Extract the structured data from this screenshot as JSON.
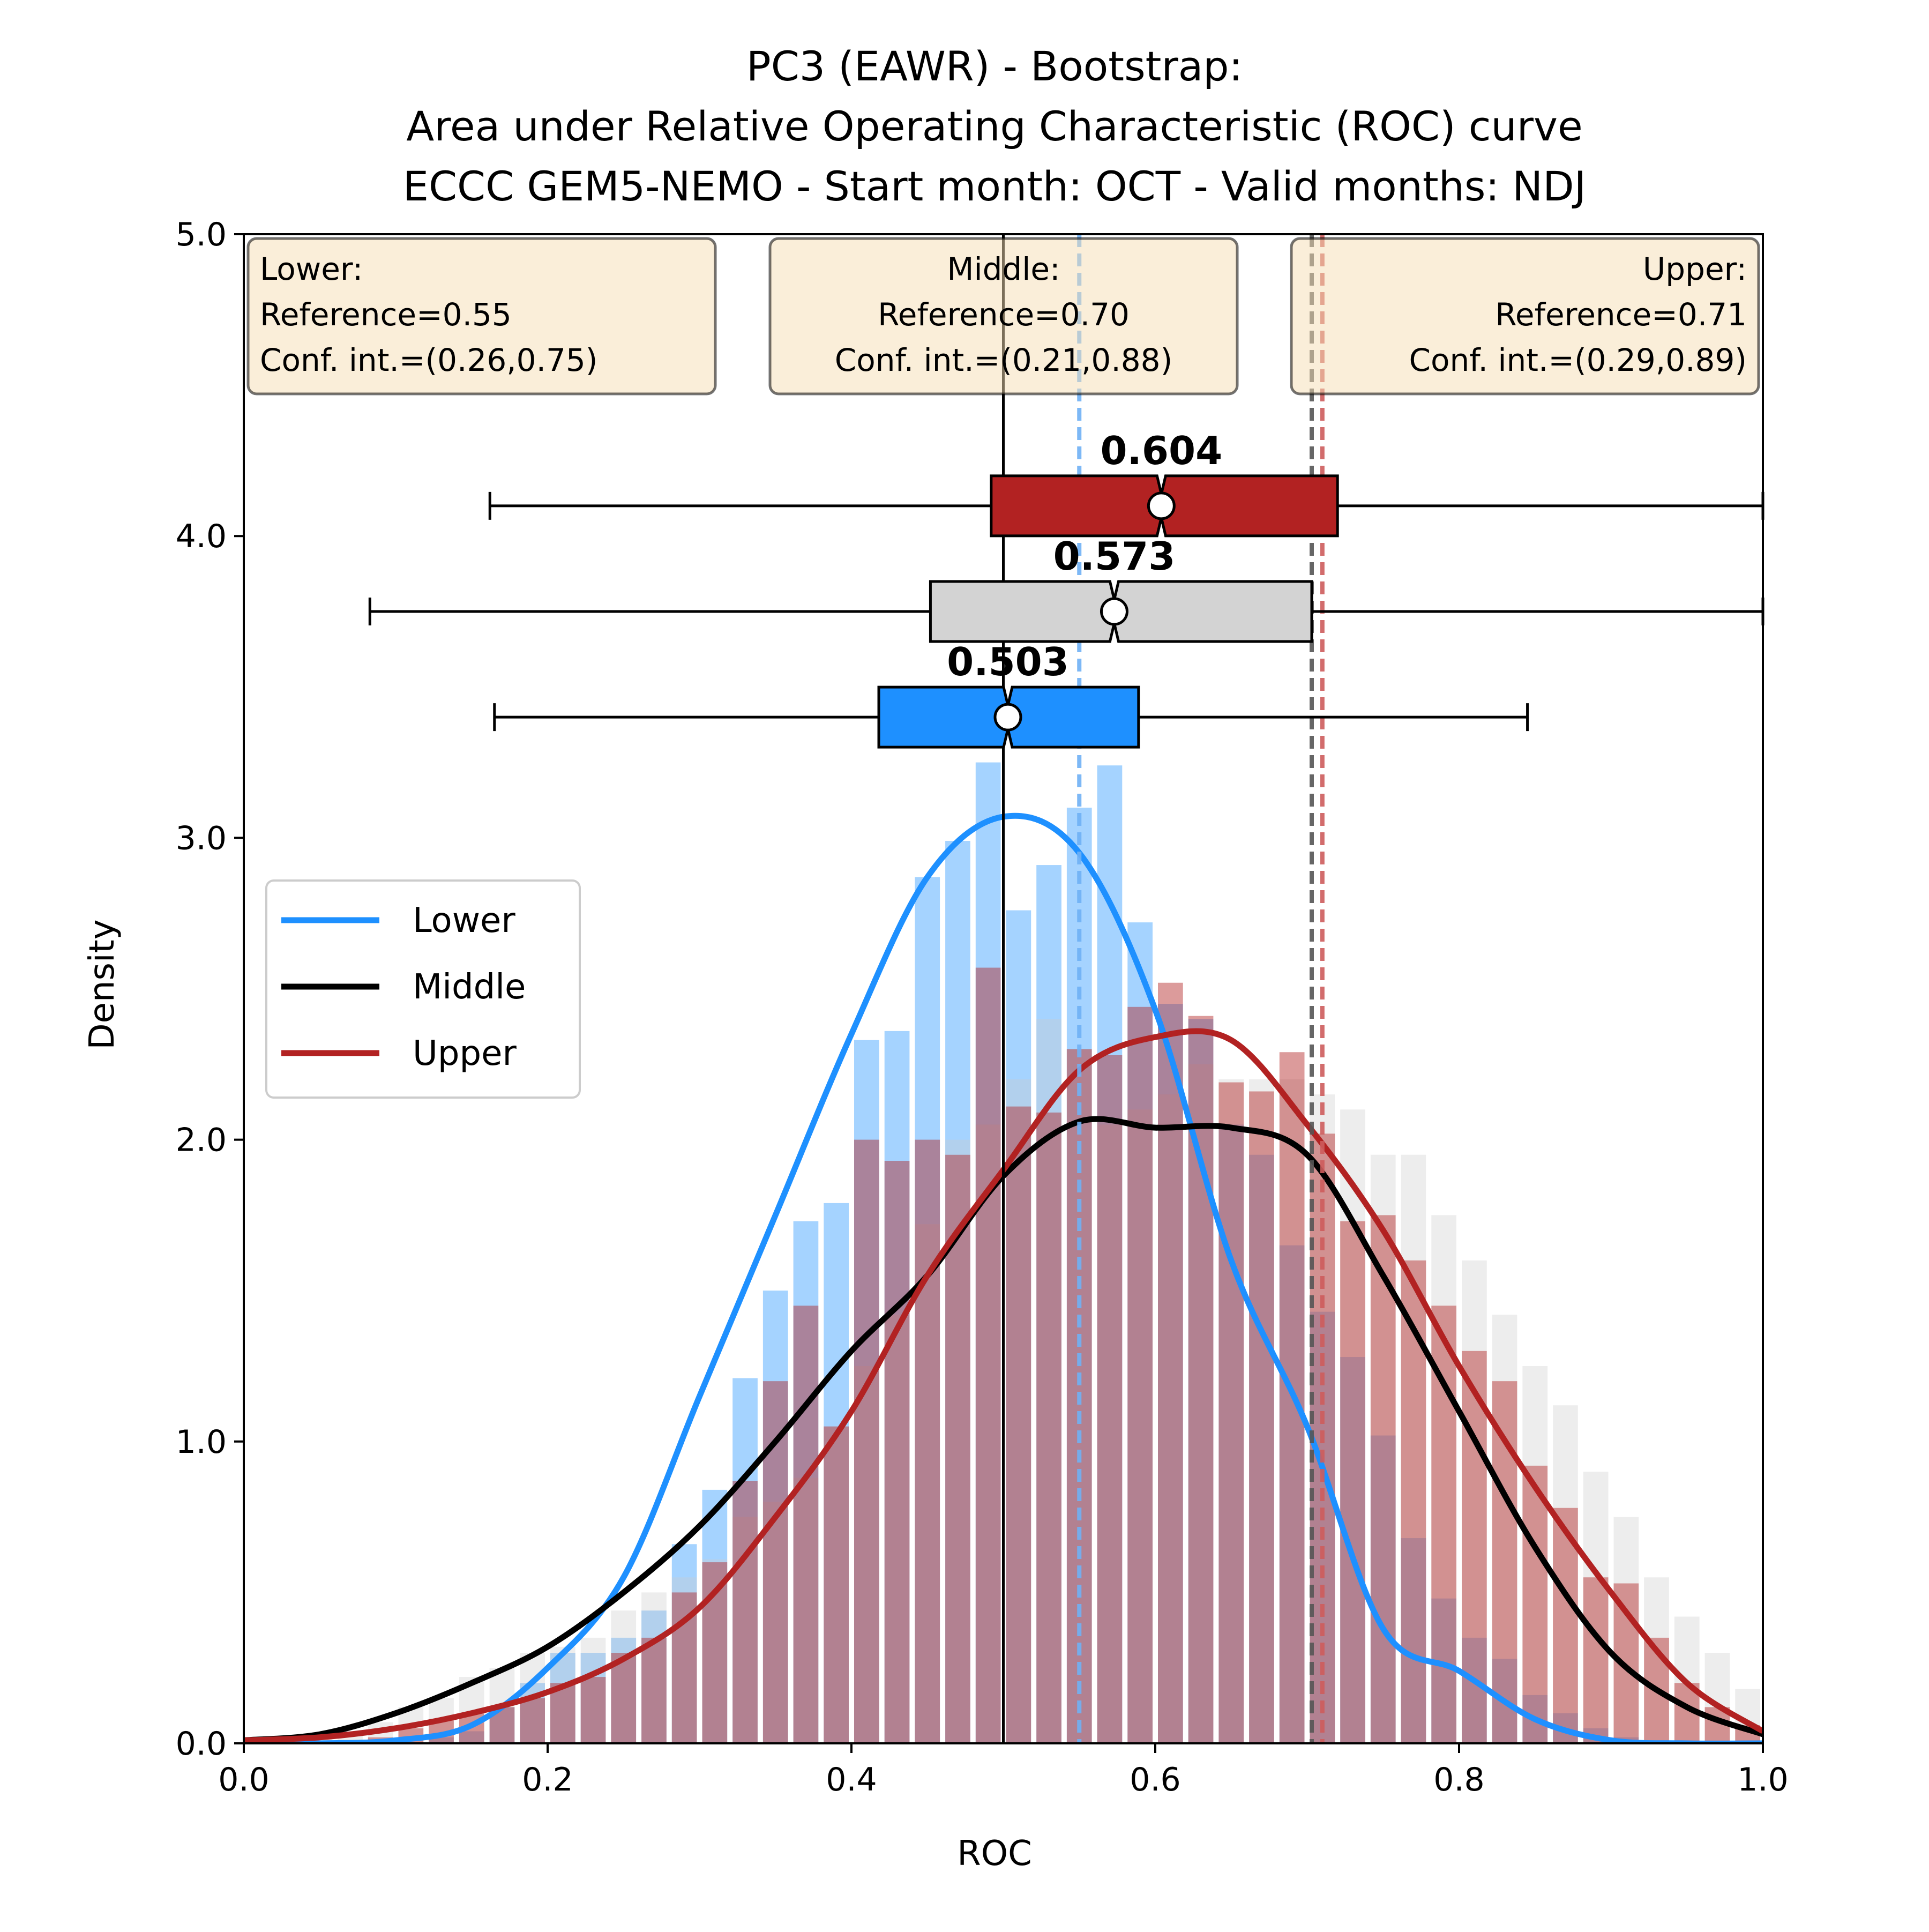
{
  "chart_data": {
    "type": "histogram+kde+boxplot",
    "title_lines": [
      "PC3 (EAWR) - Bootstrap:",
      "Area under Relative Operating Characteristic (ROC) curve",
      "ECCC GEM5-NEMO - Start month: OCT - Valid months: NDJ"
    ],
    "xlabel": "ROC",
    "ylabel": "Density",
    "xlim": [
      0.0,
      1.0
    ],
    "ylim": [
      0.0,
      5.0
    ],
    "xticks": [
      0.0,
      0.2,
      0.4,
      0.6,
      0.8,
      1.0
    ],
    "xtick_labels": [
      "0.0",
      "0.2",
      "0.4",
      "0.6",
      "0.8",
      "1.0"
    ],
    "yticks": [
      0.0,
      1.0,
      2.0,
      3.0,
      4.0,
      5.0
    ],
    "ytick_labels": [
      "0.0",
      "1.0",
      "2.0",
      "3.0",
      "4.0",
      "5.0"
    ],
    "legend": {
      "placement": "center-left",
      "entries": [
        {
          "label": "Lower",
          "color": "#1e90ff"
        },
        {
          "label": "Middle",
          "color": "#000000"
        },
        {
          "label": "Upper",
          "color": "#b22222"
        }
      ]
    },
    "info_boxes": [
      {
        "align": "left",
        "lines": [
          "Lower:",
          "Reference=0.55",
          "Conf. int.=(0.26,0.75)"
        ]
      },
      {
        "align": "center",
        "lines": [
          "Middle:",
          "Reference=0.70",
          "Conf. int.=(0.21,0.88)"
        ]
      },
      {
        "align": "right",
        "lines": [
          "Upper:",
          "Reference=0.71",
          "Conf. int.=(0.29,0.89)"
        ]
      }
    ],
    "reference_lines": [
      {
        "name": "Lower",
        "x": 0.55,
        "color": "#6fb0f5"
      },
      {
        "name": "Middle",
        "x": 0.703,
        "color": "#555555"
      },
      {
        "name": "Upper",
        "x": 0.71,
        "color": "#cd5c5c"
      }
    ],
    "null_line": {
      "x": 0.5,
      "color": "#000000"
    },
    "histogram": {
      "bin_edges_start": 0.0,
      "bin_width": 0.02,
      "series": [
        {
          "name": "Lower",
          "color": "#1e90ff",
          "opacity": 0.4,
          "values": [
            0,
            0,
            0,
            0,
            0,
            0,
            0.02,
            0.04,
            0.12,
            0.2,
            0.3,
            0.3,
            0.35,
            0.44,
            0.66,
            0.84,
            1.21,
            1.5,
            1.73,
            1.79,
            2.33,
            2.36,
            2.87,
            2.99,
            3.25,
            2.76,
            2.91,
            3.1,
            3.24,
            2.72,
            2.45,
            2.4,
            2.05,
            1.95,
            1.65,
            1.43,
            1.28,
            1.02,
            0.68,
            0.48,
            0.35,
            0.28,
            0.16,
            0.1,
            0.05,
            0.02,
            0.01,
            0,
            0,
            0,
            0
          ]
        },
        {
          "name": "Middle",
          "color": "#cccccc",
          "opacity": 0.35,
          "values": [
            0,
            0,
            0.02,
            0.04,
            0.07,
            0.12,
            0.15,
            0.22,
            0.25,
            0.3,
            0.32,
            0.35,
            0.44,
            0.5,
            0.55,
            0.61,
            0.75,
            0.8,
            0.88,
            1.05,
            1.25,
            1.42,
            1.72,
            2.0,
            2.05,
            2.2,
            2.4,
            2.3,
            2.05,
            2.1,
            2.15,
            2.25,
            2.2,
            2.2,
            2.2,
            2.15,
            2.1,
            1.95,
            1.95,
            1.75,
            1.6,
            1.42,
            1.25,
            1.12,
            0.9,
            0.75,
            0.55,
            0.42,
            0.3,
            0.18,
            0.1
          ]
        },
        {
          "name": "Upper",
          "color": "#b22222",
          "opacity": 0.45,
          "values": [
            0,
            0,
            0,
            0.01,
            0.02,
            0.05,
            0.08,
            0.1,
            0.12,
            0.15,
            0.2,
            0.22,
            0.3,
            0.35,
            0.5,
            0.6,
            0.87,
            1.2,
            1.45,
            1.05,
            2.0,
            1.93,
            2.0,
            1.95,
            2.57,
            2.11,
            2.09,
            2.3,
            2.28,
            2.44,
            2.52,
            2.41,
            2.19,
            2.16,
            2.29,
            2.02,
            1.73,
            1.75,
            1.6,
            1.45,
            1.3,
            1.2,
            0.92,
            0.78,
            0.55,
            0.53,
            0.35,
            0.2,
            0.12,
            0.06,
            0.03
          ]
        }
      ]
    },
    "kde_series": [
      {
        "name": "Lower",
        "color": "#1e90ff",
        "x": [
          0.0,
          0.05,
          0.1,
          0.15,
          0.2,
          0.25,
          0.3,
          0.35,
          0.4,
          0.45,
          0.5,
          0.55,
          0.6,
          0.65,
          0.7,
          0.75,
          0.8,
          0.85,
          0.9,
          0.95,
          1.0
        ],
        "y": [
          0.0,
          0.0,
          0.01,
          0.06,
          0.25,
          0.55,
          1.15,
          1.75,
          2.35,
          2.87,
          3.07,
          2.95,
          2.43,
          1.6,
          1.05,
          0.38,
          0.24,
          0.08,
          0.01,
          0.0,
          0.0
        ]
      },
      {
        "name": "Middle",
        "color": "#000000",
        "x": [
          0.0,
          0.05,
          0.1,
          0.15,
          0.2,
          0.25,
          0.3,
          0.35,
          0.4,
          0.45,
          0.5,
          0.55,
          0.6,
          0.65,
          0.7,
          0.75,
          0.8,
          0.85,
          0.9,
          0.95,
          1.0
        ],
        "y": [
          0.01,
          0.03,
          0.1,
          0.2,
          0.32,
          0.5,
          0.72,
          1.0,
          1.3,
          1.55,
          1.88,
          2.06,
          2.04,
          2.04,
          1.95,
          1.55,
          1.1,
          0.65,
          0.3,
          0.12,
          0.03
        ]
      },
      {
        "name": "Upper",
        "color": "#b22222",
        "x": [
          0.0,
          0.05,
          0.1,
          0.15,
          0.2,
          0.25,
          0.3,
          0.35,
          0.4,
          0.45,
          0.5,
          0.55,
          0.6,
          0.65,
          0.7,
          0.75,
          0.8,
          0.85,
          0.9,
          0.95,
          1.0
        ],
        "y": [
          0.01,
          0.02,
          0.05,
          0.1,
          0.17,
          0.28,
          0.45,
          0.75,
          1.1,
          1.55,
          1.9,
          2.23,
          2.34,
          2.33,
          2.05,
          1.7,
          1.25,
          0.85,
          0.5,
          0.2,
          0.04
        ]
      }
    ],
    "boxplots": [
      {
        "name": "Upper",
        "y": 4.1,
        "color": "#b22222",
        "whisker_low": 0.162,
        "q1": 0.492,
        "median": 0.604,
        "q3": 0.72,
        "whisker_high": 1.0,
        "mean": 0.604,
        "median_label": "0.604"
      },
      {
        "name": "Middle",
        "y": 3.75,
        "color": "#d3d3d3",
        "whisker_low": 0.083,
        "q1": 0.452,
        "median": 0.573,
        "q3": 0.703,
        "whisker_high": 1.0,
        "mean": 0.573,
        "median_label": "0.573"
      },
      {
        "name": "Lower",
        "y": 3.4,
        "color": "#1e90ff",
        "whisker_low": 0.165,
        "q1": 0.418,
        "median": 0.503,
        "q3": 0.589,
        "whisker_high": 0.845,
        "mean": 0.503,
        "median_label": "0.503"
      }
    ]
  }
}
